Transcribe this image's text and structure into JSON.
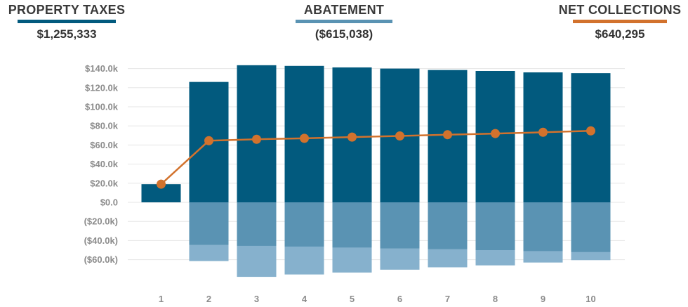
{
  "kpis": {
    "taxes": {
      "label": "PROPERTY TAXES",
      "value": "$1,255,333",
      "color": "#025a7e"
    },
    "abatement": {
      "label": "ABATEMENT",
      "value": "($615,038)",
      "color": "#5a93b3"
    },
    "net": {
      "label": "NET COLLECTIONS",
      "value": "$640,295",
      "color": "#d2722d"
    }
  },
  "chart_data": {
    "type": "bar",
    "categories": [
      "1",
      "2",
      "3",
      "4",
      "5",
      "6",
      "7",
      "8",
      "9",
      "10"
    ],
    "series": [
      {
        "name": "PROPERTY TAXES",
        "color": "#025a7e",
        "values": [
          19,
          126,
          143.5,
          142.8,
          141.2,
          140,
          138.5,
          137.5,
          136,
          135.2
        ]
      },
      {
        "name": "ABATEMENT",
        "color": "#5a93b3",
        "values": [
          0,
          -44.5,
          -45.5,
          -46.3,
          -47.3,
          -48.2,
          -49,
          -50,
          -51,
          -52
        ]
      },
      {
        "color": "#86b1cd",
        "values": [
          0,
          -61.5,
          -78,
          -75.5,
          -73.5,
          -70.5,
          -68,
          -66,
          -63,
          -60.5
        ]
      },
      {
        "name": "NET COLLECTIONS",
        "color": "#d2722d",
        "type": "line",
        "values": [
          19,
          64.5,
          66,
          67,
          68.3,
          69.5,
          70.8,
          72,
          73.3,
          74.8
        ]
      }
    ],
    "ytick_labels": [
      "$140.0k",
      "$120.0k",
      "$100.0k",
      "$80.0k",
      "$60.0k",
      "$40.0k",
      "$20.0k",
      "$0.0",
      "($20.0k)",
      "($40.0k)",
      "($60.0k)"
    ],
    "ytick_values": [
      140,
      120,
      100,
      80,
      60,
      40,
      20,
      0,
      -20,
      -40,
      -60
    ],
    "ylim": [
      -80,
      140
    ],
    "grid": true
  }
}
